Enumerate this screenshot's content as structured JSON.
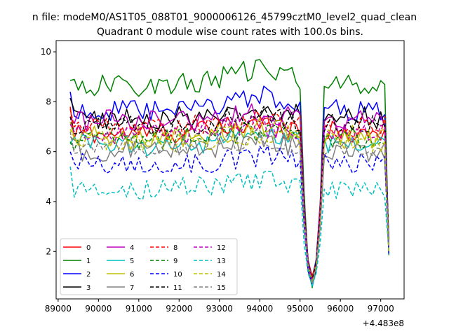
{
  "chart_data": {
    "type": "line",
    "suptitle": "n file: modeM0/AS1T05_088T01_9000006126_45799cztM0_level2_quad_clean",
    "title": "Quadrant 0 module wise count rates with 100.0s bins.",
    "offset_label": "+4.483e8",
    "xlabel": "",
    "ylabel": "",
    "xlim": [
      88950,
      97580
    ],
    "ylim": [
      0.1,
      10.45
    ],
    "x_ticks": [
      89000,
      90000,
      91000,
      92000,
      93000,
      94000,
      95000,
      96000,
      97000
    ],
    "x_tick_labels": [
      "89000",
      "90000",
      "91000",
      "92000",
      "93000",
      "94000",
      "95000",
      "96000",
      "97000"
    ],
    "y_ticks": [
      2,
      4,
      6,
      8,
      10
    ],
    "y_tick_labels": [
      "2",
      "4",
      "6",
      "8",
      "10"
    ],
    "grid": false,
    "legend_placement": "lower-left",
    "x_segments": [
      {
        "start": 89300,
        "end": 95300,
        "step": 100
      },
      {
        "start": 95300,
        "end": 97200,
        "step": 100
      }
    ],
    "dip_x": [
      95300,
      97200
    ],
    "series": [
      {
        "name": "0",
        "color": "#ff0000",
        "dash": "solid",
        "level": 6.75,
        "first": 7.8,
        "dip": 1.0
      },
      {
        "name": "1",
        "color": "#008000",
        "dash": "solid",
        "level": 8.65,
        "first": 8.85,
        "dip": 0.55
      },
      {
        "name": "2",
        "color": "#0000ff",
        "dash": "solid",
        "level": 7.6,
        "first": 8.4,
        "dip": 0.9
      },
      {
        "name": "3",
        "color": "#000000",
        "dash": "solid",
        "level": 7.35,
        "first": 8.15,
        "dip": 0.7
      },
      {
        "name": "4",
        "color": "#bf00bf",
        "dash": "solid",
        "level": 7.25,
        "first": 7.4,
        "dip": 0.8
      },
      {
        "name": "5",
        "color": "#00bfbf",
        "dash": "solid",
        "level": 6.25,
        "first": 6.3,
        "dip": 0.6
      },
      {
        "name": "6",
        "color": "#bfbf00",
        "dash": "solid",
        "level": 6.6,
        "first": 7.2,
        "dip": 0.85
      },
      {
        "name": "7",
        "color": "#808080",
        "dash": "solid",
        "level": 6.05,
        "first": 6.6,
        "dip": 0.75
      },
      {
        "name": "8",
        "color": "#ff0000",
        "dash": "dashed",
        "level": 7.0,
        "first": 7.7,
        "dip": 0.95
      },
      {
        "name": "9",
        "color": "#008000",
        "dash": "dashed",
        "level": 6.5,
        "first": 6.4,
        "dip": 0.8
      },
      {
        "name": "10",
        "color": "#0000ff",
        "dash": "dashed",
        "level": 5.5,
        "first": 6.0,
        "dip": 0.7
      },
      {
        "name": "11",
        "color": "#000000",
        "dash": "dashed",
        "level": 7.1,
        "first": 7.4,
        "dip": 0.85
      },
      {
        "name": "12",
        "color": "#bf00bf",
        "dash": "dashed",
        "level": 6.7,
        "first": 7.1,
        "dip": 0.8
      },
      {
        "name": "13",
        "color": "#00bfbf",
        "dash": "dashed",
        "level": 4.5,
        "first": 5.4,
        "dip": 0.65
      },
      {
        "name": "14",
        "color": "#bfbf00",
        "dash": "dashed",
        "level": 6.4,
        "first": 6.9,
        "dip": 0.75
      },
      {
        "name": "15",
        "color": "#808080",
        "dash": "dashed",
        "level": 6.2,
        "first": 6.8,
        "dip": 0.7
      }
    ]
  }
}
